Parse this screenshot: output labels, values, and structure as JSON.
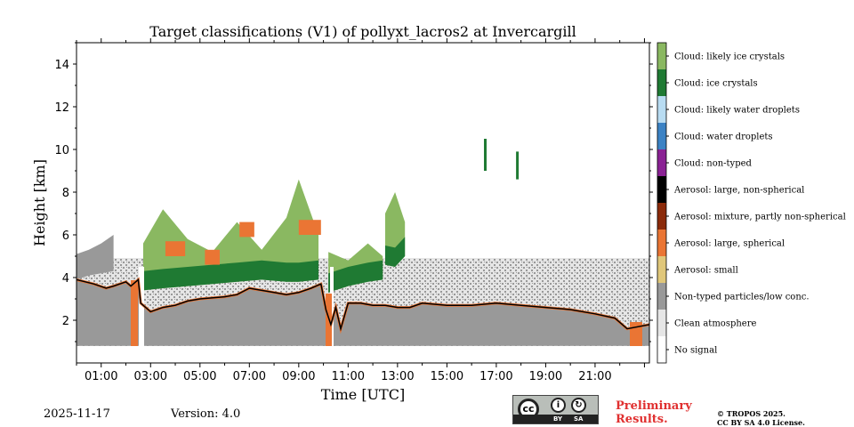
{
  "chart_data": {
    "type": "heatmap",
    "title": "Target classifications (V1) of pollyxt_lacros2 at Invercargill",
    "xlabel": "Time [UTC]",
    "ylabel": "Height [km]",
    "xlim": [
      0,
      23.2
    ],
    "ylim": [
      0,
      15
    ],
    "x_ticks": [
      1,
      3,
      5,
      7,
      9,
      11,
      13,
      15,
      17,
      19,
      21
    ],
    "x_tick_labels": [
      "01:00",
      "03:00",
      "05:00",
      "07:00",
      "09:00",
      "11:00",
      "13:00",
      "15:00",
      "17:00",
      "19:00",
      "21:00"
    ],
    "y_ticks": [
      2,
      4,
      6,
      8,
      10,
      12,
      14
    ],
    "y_tick_labels": [
      "2",
      "4",
      "6",
      "8",
      "10",
      "12",
      "14"
    ],
    "legend": [
      {
        "label": "Cloud: likely ice crystals",
        "color": "#8ab861"
      },
      {
        "label": "Cloud: ice crystals",
        "color": "#1f7a33"
      },
      {
        "label": "Cloud: likely water droplets",
        "color": "#b8dcf2"
      },
      {
        "label": "Cloud: water droplets",
        "color": "#3b82c4"
      },
      {
        "label": "Cloud: non-typed",
        "color": "#8a2294"
      },
      {
        "label": "Aerosol: large, non-spherical",
        "color": "#000000"
      },
      {
        "label": "Aerosol: mixture, partly non-spherical",
        "color": "#8b2a0a"
      },
      {
        "label": "Aerosol: large, spherical",
        "color": "#ea7534"
      },
      {
        "label": "Aerosol: small",
        "color": "#e0c77a"
      },
      {
        "label": "Non-typed particles/low conc.",
        "color": "#999999"
      },
      {
        "label": "Clean atmosphere",
        "color": "#e6e6e6"
      },
      {
        "label": "No signal",
        "color": "#ffffff"
      }
    ],
    "boundary_layer_top_km": {
      "time_h": [
        0,
        0.7,
        1.2,
        1.5,
        2.0,
        2.2,
        2.5,
        2.6,
        3.0,
        3.5,
        4.0,
        4.5,
        5.0,
        6.0,
        6.5,
        7.0,
        7.5,
        8.0,
        8.5,
        9.0,
        9.5,
        9.9,
        10.1,
        10.3,
        10.5,
        10.7,
        11.0,
        11.5,
        12.0,
        12.5,
        13.0,
        13.5,
        14.0,
        15.0,
        16.0,
        17.0,
        18.0,
        19.0,
        20.0,
        21.0,
        21.8,
        22.3,
        23.2
      ],
      "top_km": [
        3.9,
        3.7,
        3.5,
        3.6,
        3.8,
        3.6,
        3.9,
        2.8,
        2.4,
        2.6,
        2.7,
        2.9,
        3.0,
        3.1,
        3.2,
        3.5,
        3.4,
        3.3,
        3.2,
        3.3,
        3.5,
        3.7,
        2.5,
        1.8,
        2.6,
        1.6,
        2.8,
        2.8,
        2.7,
        2.7,
        2.6,
        2.6,
        2.8,
        2.7,
        2.7,
        2.8,
        2.7,
        2.6,
        2.5,
        2.3,
        2.1,
        1.6,
        1.8
      ]
    },
    "cloud_layers": [
      {
        "name": "evening-aerosol-layer",
        "time_h": [
          0.0,
          0.5,
          1.0,
          1.5
        ],
        "base_km": [
          3.9,
          4.1,
          4.2,
          4.3
        ],
        "top_km": [
          5.1,
          5.3,
          5.6,
          6.0
        ],
        "class": "Non-typed particles/low conc."
      },
      {
        "name": "ice-cloud-2-6",
        "time_h": [
          2.7,
          3.5,
          4.5,
          5.5,
          6.5,
          7.5,
          8.5,
          9.0,
          9.8
        ],
        "base_km": [
          3.4,
          3.5,
          3.6,
          3.7,
          3.8,
          3.9,
          3.8,
          3.8,
          3.9
        ],
        "top_km": [
          5.6,
          7.2,
          5.8,
          5.2,
          6.6,
          5.3,
          6.8,
          8.6,
          6.0
        ],
        "class": "Cloud: likely ice crystals"
      },
      {
        "name": "ice-cloud-10-12",
        "time_h": [
          10.2,
          11.0,
          11.8,
          12.4
        ],
        "base_km": [
          3.3,
          3.6,
          3.8,
          3.9
        ],
        "top_km": [
          5.2,
          4.8,
          5.6,
          5.0
        ],
        "class": "Cloud: likely ice crystals"
      },
      {
        "name": "ice-cloud-12-13",
        "time_h": [
          12.5,
          12.9,
          13.3
        ],
        "base_km": [
          4.6,
          4.5,
          5.0
        ],
        "top_km": [
          7.0,
          8.0,
          6.6
        ],
        "class": "Cloud: likely ice crystals"
      }
    ],
    "ice_fallstreaks": [
      {
        "time_h": 16.5,
        "base_km": 9.0,
        "top_km": 10.5
      },
      {
        "time_h": 17.8,
        "base_km": 8.6,
        "top_km": 9.9
      }
    ],
    "info": {
      "date": "2025-11-17",
      "version": "Version: 4.0",
      "preliminary": [
        "Preliminary",
        "Results."
      ],
      "license": [
        "© TROPOS 2025.",
        "CC BY SA 4.0 License."
      ],
      "badge_cc": "cc",
      "badge_by": "BY",
      "badge_sa": "SA"
    }
  }
}
